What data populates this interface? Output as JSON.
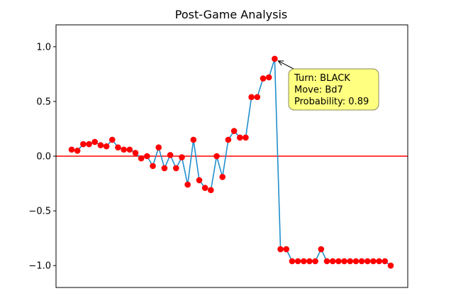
{
  "chart_data": {
    "type": "line",
    "title": "Post-Game Analysis",
    "xlabel": "",
    "ylabel": "",
    "ylim": [
      -1.2,
      1.2
    ],
    "yticks": [
      1.0,
      0.5,
      0.0,
      -0.5,
      -1.0
    ],
    "ytick_labels": [
      "1.0",
      "0.5",
      "0.0",
      "−0.5",
      "−1.0"
    ],
    "x_ticks_visible": false,
    "grid": false,
    "reference_line": {
      "y": 0.0,
      "color": "#ff0000"
    },
    "line_color": "#1f8fcc",
    "marker_color": "#ff0000",
    "series": [
      {
        "values": [
          0.06,
          0.05,
          0.11,
          0.11,
          0.13,
          0.1,
          0.09,
          0.15,
          0.08,
          0.06,
          0.06,
          0.03,
          -0.02,
          0.0,
          -0.09,
          0.08,
          -0.11,
          0.01,
          -0.11,
          -0.01,
          -0.26,
          0.15,
          -0.22,
          -0.29,
          -0.31,
          0.0,
          -0.19,
          0.15,
          0.23,
          0.17,
          0.17,
          0.54,
          0.54,
          0.71,
          0.72,
          0.89,
          -0.85,
          -0.85,
          -0.96,
          -0.96,
          -0.96,
          -0.96,
          -0.96,
          -0.85,
          -0.96,
          -0.96,
          -0.96,
          -0.96,
          -0.96,
          -0.96,
          -0.96,
          -0.96,
          -0.96,
          -0.96,
          -0.96,
          -1.0
        ]
      }
    ],
    "annotation": {
      "point_index": 35,
      "lines": [
        "Turn: BLACK",
        "Move: Bd7",
        "Probability: 0.89"
      ],
      "box_color": "#ffff80",
      "border_color": "#8a8a60"
    }
  }
}
